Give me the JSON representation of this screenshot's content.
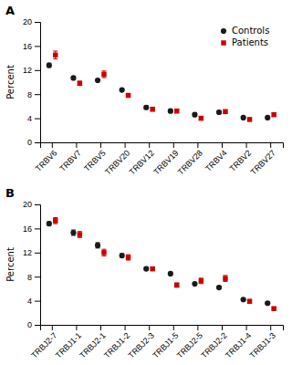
{
  "chart_data": [
    {
      "type": "errorbar",
      "title": "A",
      "categories": [
        "TRBV6",
        "TRBV7",
        "TRBV5",
        "TRBV20",
        "TRBV12",
        "TRBV19",
        "TRBV28",
        "TRBV4",
        "TRBV2",
        "TRBV27"
      ],
      "y_label": "Percent",
      "ylim": [
        0,
        20
      ],
      "yticks": [
        0,
        4,
        8,
        12,
        16,
        20
      ],
      "grid": false,
      "legend": "top-right",
      "series": [
        {
          "name": "Controls",
          "color": "#1a1a1a",
          "marker": "circle",
          "values": [
            12.8,
            10.7,
            10.3,
            8.7,
            5.8,
            5.2,
            4.6,
            5.0,
            4.1,
            4.1
          ],
          "errors": [
            0.35,
            0.25,
            0.0,
            0.0,
            0.25,
            0.2,
            0.3,
            0.25,
            0.0,
            0.0
          ]
        },
        {
          "name": "Patients",
          "color": "#cc0000",
          "marker": "square",
          "values": [
            14.5,
            9.8,
            11.3,
            7.8,
            5.5,
            5.2,
            4.0,
            5.1,
            3.8,
            4.6
          ],
          "errors": [
            0.65,
            0.35,
            0.55,
            0.3,
            0.3,
            0.3,
            0.3,
            0.3,
            0.2,
            0.3
          ]
        }
      ]
    },
    {
      "type": "errorbar",
      "title": "B",
      "categories": [
        "TRBJ2-7",
        "TRBJ1-1",
        "TRBJ2-1",
        "TRBJ1-2",
        "TRBJ2-3",
        "TRBJ1-5",
        "TRBJ2-5",
        "TRBJ2-2",
        "TRBJ1-4",
        "TRBJ1-3"
      ],
      "y_label": "Percent",
      "ylim": [
        0,
        20
      ],
      "yticks": [
        0,
        4,
        8,
        12,
        16,
        20
      ],
      "grid": false,
      "series": [
        {
          "name": "Controls",
          "color": "#1a1a1a",
          "marker": "circle",
          "values": [
            16.8,
            15.3,
            13.2,
            11.5,
            9.3,
            8.5,
            6.8,
            6.2,
            4.2,
            3.6
          ],
          "errors": [
            0.3,
            0.45,
            0.45,
            0.3,
            0.25,
            0.0,
            0.2,
            0.2,
            0.2,
            0.2
          ]
        },
        {
          "name": "Patients",
          "color": "#cc0000",
          "marker": "square",
          "values": [
            17.3,
            15.0,
            12.0,
            11.2,
            9.3,
            6.6,
            7.3,
            7.7,
            3.9,
            2.7
          ],
          "errors": [
            0.5,
            0.5,
            0.55,
            0.45,
            0.3,
            0.35,
            0.45,
            0.5,
            0.3,
            0.2
          ]
        }
      ]
    }
  ]
}
